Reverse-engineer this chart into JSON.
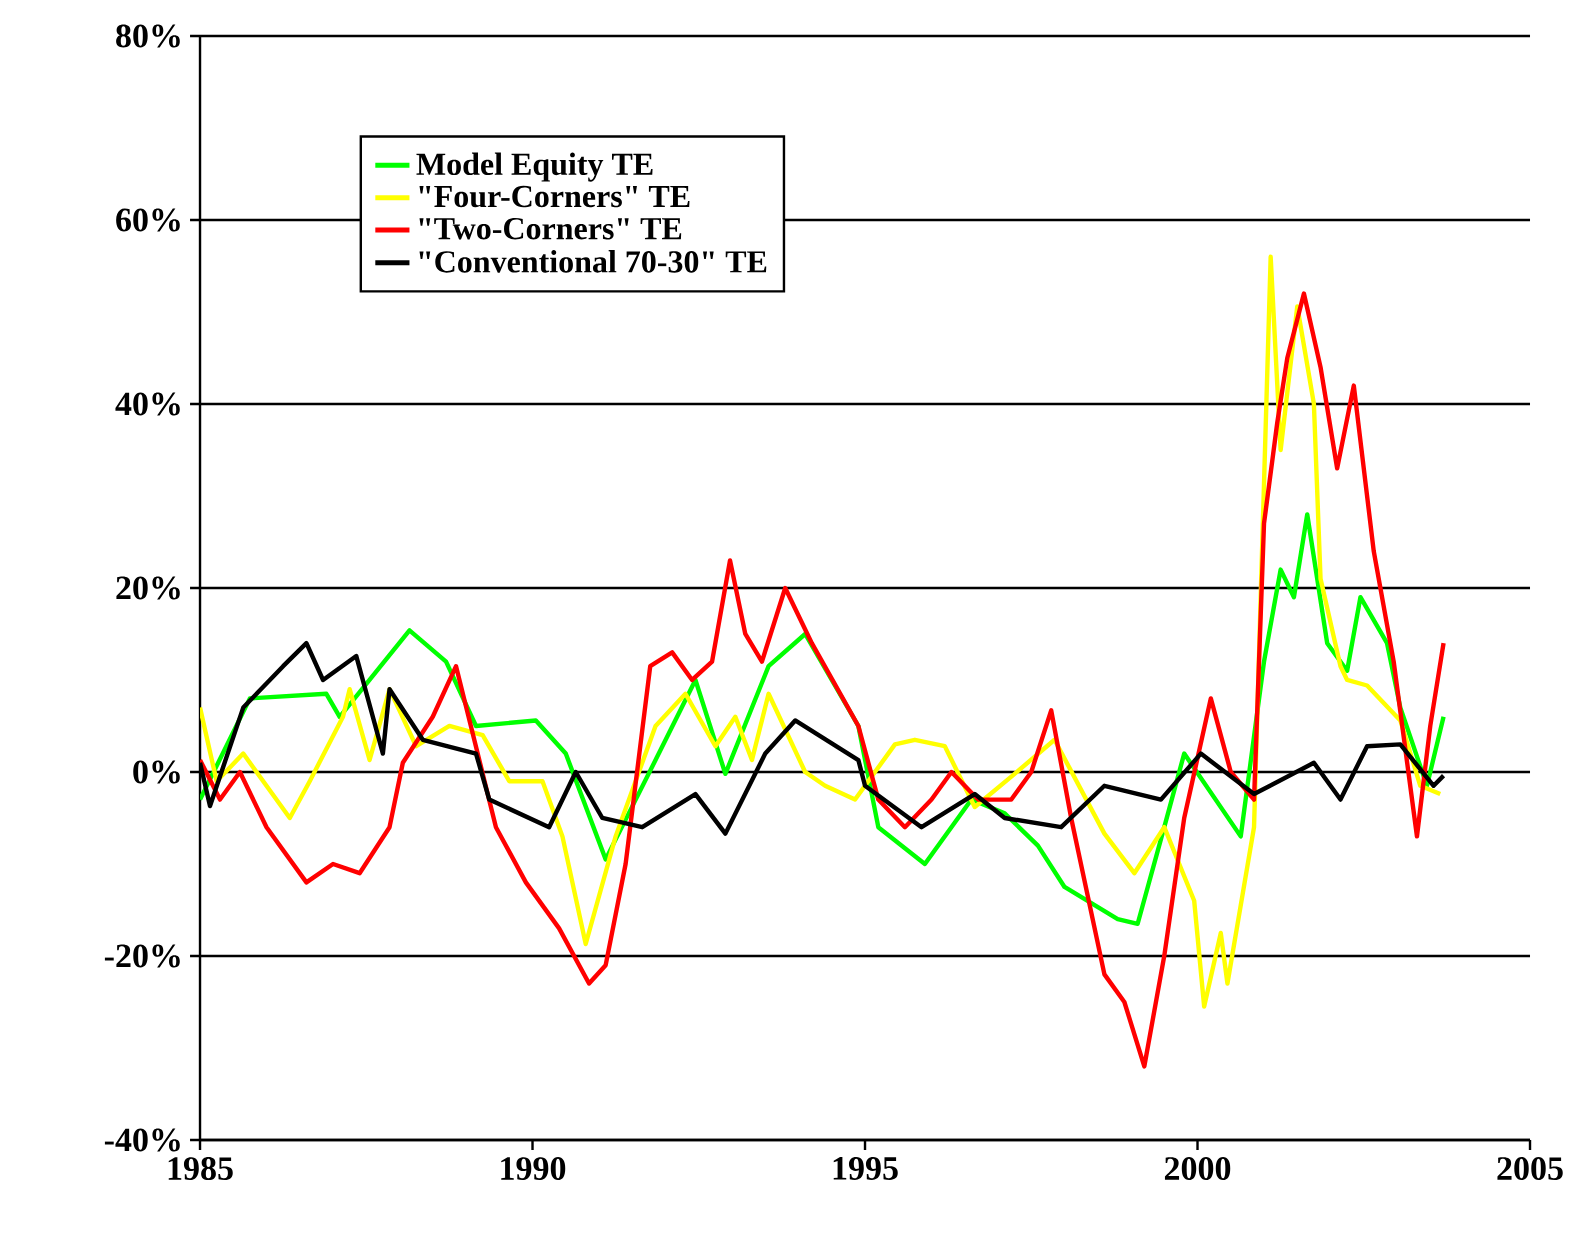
{
  "chart_data": {
    "type": "line",
    "xlim": [
      1985,
      2005
    ],
    "xticks": [
      1985,
      1990,
      1995,
      2000,
      2005
    ],
    "ylim": [
      -40,
      80
    ],
    "yticks": [
      {
        "value": -40,
        "label": "-40%"
      },
      {
        "value": -20,
        "label": "-20%"
      },
      {
        "value": 0,
        "label": "0%"
      },
      {
        "value": 20,
        "label": "20%"
      },
      {
        "value": 40,
        "label": "40%"
      },
      {
        "value": 60,
        "label": "60%"
      },
      {
        "value": 80,
        "label": "80%"
      }
    ],
    "grid": "y",
    "legend": "top left",
    "marker": "none",
    "line_style": "solid",
    "series": [
      {
        "name": "Model Equity TE",
        "color": "#00ff00",
        "x": [
          1985.0,
          1985.75,
          1986.9,
          1987.1,
          1988.15,
          1988.7,
          1989.15,
          1990.05,
          1990.5,
          1991.1,
          1991.85,
          1992.45,
          1992.9,
          1993.55,
          1994.1,
          1994.9,
          1995.2,
          1995.9,
          1996.6,
          1997.1,
          1997.6,
          1998.0,
          1998.8,
          1999.1,
          1999.5,
          1999.8,
          2000.65,
          2001.0,
          2001.25,
          2001.45,
          2001.65,
          2001.95,
          2002.25,
          2002.45,
          2002.85,
          2003.05,
          2003.45,
          2003.7
        ],
        "values": [
          -3,
          8,
          8.5,
          6,
          15.4,
          12,
          5,
          5.6,
          2,
          -9.5,
          1.3,
          10,
          -0.2,
          11.5,
          15,
          5,
          -6,
          -10,
          -3,
          -4.5,
          -8,
          -12.5,
          -16,
          -16.5,
          -6,
          2,
          -7,
          12,
          22,
          19,
          28,
          14,
          11,
          19,
          14,
          7,
          -1.5,
          6
        ]
      },
      {
        "name": "\"Four-Corners\" TE",
        "color": "#ffff00",
        "x": [
          1985.0,
          1985.25,
          1985.65,
          1986.35,
          1986.65,
          1987.15,
          1987.25,
          1987.55,
          1987.85,
          1988.25,
          1988.75,
          1989.25,
          1989.65,
          1990.15,
          1990.45,
          1990.8,
          1991.25,
          1991.85,
          1992.3,
          1992.75,
          1993.05,
          1993.3,
          1993.55,
          1994.1,
          1994.4,
          1994.85,
          1995.45,
          1995.75,
          1996.2,
          1996.65,
          1997.25,
          1997.85,
          1998.6,
          1999.05,
          1999.5,
          1999.95,
          2000.1,
          2000.35,
          2000.45,
          2000.85,
          2000.95,
          2001.1,
          2001.25,
          2001.5,
          2001.75,
          2001.85,
          2002.15,
          2002.25,
          2002.55,
          2003.05,
          2003.35,
          2003.65
        ],
        "values": [
          7,
          -1,
          2,
          -5,
          -1,
          6,
          9,
          1.3,
          9,
          2.8,
          5,
          4,
          -1,
          -1,
          -7,
          -18.7,
          -7,
          5,
          8.5,
          2.8,
          6,
          1.3,
          8.5,
          0,
          -1.5,
          -3,
          3,
          3.5,
          2.8,
          -3.8,
          -0.2,
          3.5,
          -6.7,
          -11,
          -6,
          -14,
          -25.5,
          -17.5,
          -23,
          -6,
          19,
          56,
          35,
          50.6,
          40,
          21,
          11.5,
          10,
          9.4,
          5.6,
          -1.5,
          -2.4
        ]
      },
      {
        "name": "\"Two-Corners\" TE",
        "color": "#ff0000",
        "x": [
          1985.0,
          1985.3,
          1985.6,
          1986.0,
          1986.6,
          1987.0,
          1987.4,
          1987.85,
          1988.05,
          1988.5,
          1988.85,
          1989.45,
          1989.9,
          1990.4,
          1990.85,
          1991.1,
          1991.4,
          1991.77,
          1992.1,
          1992.4,
          1992.7,
          1992.97,
          1993.2,
          1993.45,
          1993.8,
          1994.2,
          1994.9,
          1995.2,
          1995.6,
          1996.0,
          1996.3,
          1996.7,
          1997.2,
          1997.5,
          1997.8,
          1998.1,
          1998.6,
          1998.9,
          1999.2,
          1999.5,
          1999.8,
          2000.2,
          2000.5,
          2000.85,
          2001.0,
          2001.2,
          2001.35,
          2001.6,
          2001.85,
          2002.1,
          2002.35,
          2002.65,
          2002.95,
          2003.3,
          2003.5,
          2003.7
        ],
        "values": [
          1.3,
          -3,
          0,
          -6,
          -12,
          -10,
          -11,
          -6,
          1,
          6,
          11.5,
          -6,
          -12,
          -17,
          -23,
          -21,
          -10,
          11.5,
          13,
          10,
          12,
          23,
          15,
          12,
          20,
          14,
          5,
          -3,
          -6,
          -3,
          0,
          -3,
          -3,
          0,
          6.7,
          -5,
          -22,
          -25,
          -32,
          -20,
          -5,
          8,
          0,
          -3,
          27,
          38,
          45,
          52,
          44,
          33,
          42,
          24,
          12,
          -7,
          5,
          14
        ]
      },
      {
        "name": "\"Conventional 70-30\" TE",
        "color": "#000000",
        "x": [
          1985.0,
          1985.15,
          1985.65,
          1986.25,
          1986.6,
          1986.85,
          1987.35,
          1987.75,
          1987.85,
          1988.35,
          1989.15,
          1989.35,
          1990.25,
          1990.65,
          1991.05,
          1991.65,
          1992.45,
          1992.9,
          1993.5,
          1993.95,
          1994.9,
          1995.0,
          1995.85,
          1996.65,
          1997.1,
          1997.95,
          1998.6,
          1999.45,
          2000.05,
          2000.85,
          2001.75,
          2002.15,
          2002.55,
          2003.05,
          2003.55,
          2003.7
        ],
        "values": [
          1,
          -3.7,
          7,
          11.5,
          14,
          10,
          12.6,
          2,
          9,
          3.5,
          2,
          -3,
          -6,
          0,
          -5,
          -6,
          -2.4,
          -6.7,
          2,
          5.6,
          1.3,
          -1.5,
          -6,
          -2.4,
          -5,
          -6,
          -1.5,
          -3,
          2,
          -2.4,
          1,
          -3,
          2.8,
          3,
          -1.5,
          -0.4
        ]
      }
    ]
  }
}
